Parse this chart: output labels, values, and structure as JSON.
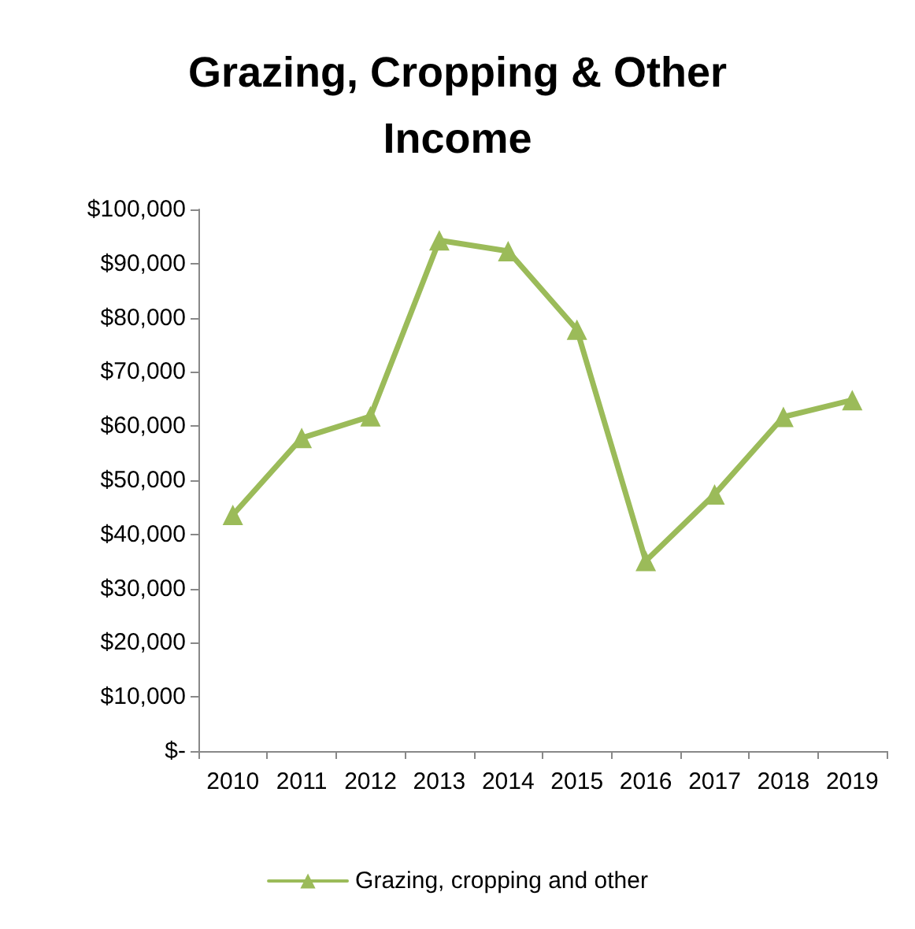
{
  "chart_data": {
    "type": "line",
    "title": "Grazing, Cropping & Other\nIncome",
    "categories": [
      "2010",
      "2011",
      "2012",
      "2013",
      "2014",
      "2015",
      "2016",
      "2017",
      "2018",
      "2019"
    ],
    "series": [
      {
        "name": "Grazing, cropping and other",
        "color": "#9bbb59",
        "values": [
          43600,
          57800,
          61800,
          94300,
          92300,
          77800,
          35100,
          47400,
          61700,
          64800
        ]
      }
    ],
    "ylim": [
      0,
      100000
    ],
    "yticks": [
      {
        "value": 0,
        "label": "$-"
      },
      {
        "value": 10000,
        "label": "$10,000"
      },
      {
        "value": 20000,
        "label": "$20,000"
      },
      {
        "value": 30000,
        "label": "$30,000"
      },
      {
        "value": 40000,
        "label": "$40,000"
      },
      {
        "value": 50000,
        "label": "$50,000"
      },
      {
        "value": 60000,
        "label": "$60,000"
      },
      {
        "value": 70000,
        "label": "$70,000"
      },
      {
        "value": 80000,
        "label": "$80,000"
      },
      {
        "value": 90000,
        "label": "$90,000"
      },
      {
        "value": 100000,
        "label": "$100,000"
      }
    ],
    "grid": false,
    "legend": "bottom",
    "marker": "triangle",
    "line_style": "solid"
  }
}
